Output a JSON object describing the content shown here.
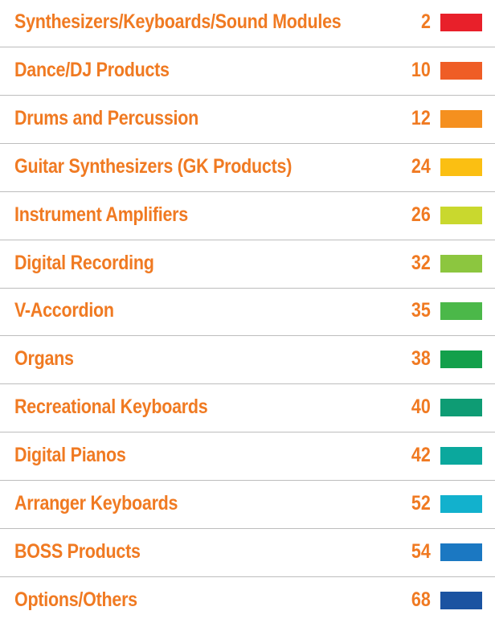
{
  "contents": [
    {
      "title": "Synthesizers/Keyboards/Sound Modules",
      "page": 2,
      "color": "#e8202a"
    },
    {
      "title": "Dance/DJ Products",
      "page": 10,
      "color": "#ef5d26"
    },
    {
      "title": "Drums and Percussion",
      "page": 12,
      "color": "#f5901f"
    },
    {
      "title": "Guitar Synthesizers (GK Products)",
      "page": 24,
      "color": "#fbbf12"
    },
    {
      "title": "Instrument Amplifiers",
      "page": 26,
      "color": "#c9d82e"
    },
    {
      "title": "Digital Recording",
      "page": 32,
      "color": "#8cc63f"
    },
    {
      "title": "V-Accordion",
      "page": 35,
      "color": "#4bb849"
    },
    {
      "title": "Organs",
      "page": 38,
      "color": "#13a04b"
    },
    {
      "title": "Recreational Keyboards",
      "page": 40,
      "color": "#0e9c74"
    },
    {
      "title": "Digital Pianos",
      "page": 42,
      "color": "#0ba89d"
    },
    {
      "title": "Arranger Keyboards",
      "page": 52,
      "color": "#12b1cd"
    },
    {
      "title": "BOSS Products",
      "page": 54,
      "color": "#1b78c2"
    },
    {
      "title": "Options/Others",
      "page": 68,
      "color": "#1b53a1"
    }
  ]
}
